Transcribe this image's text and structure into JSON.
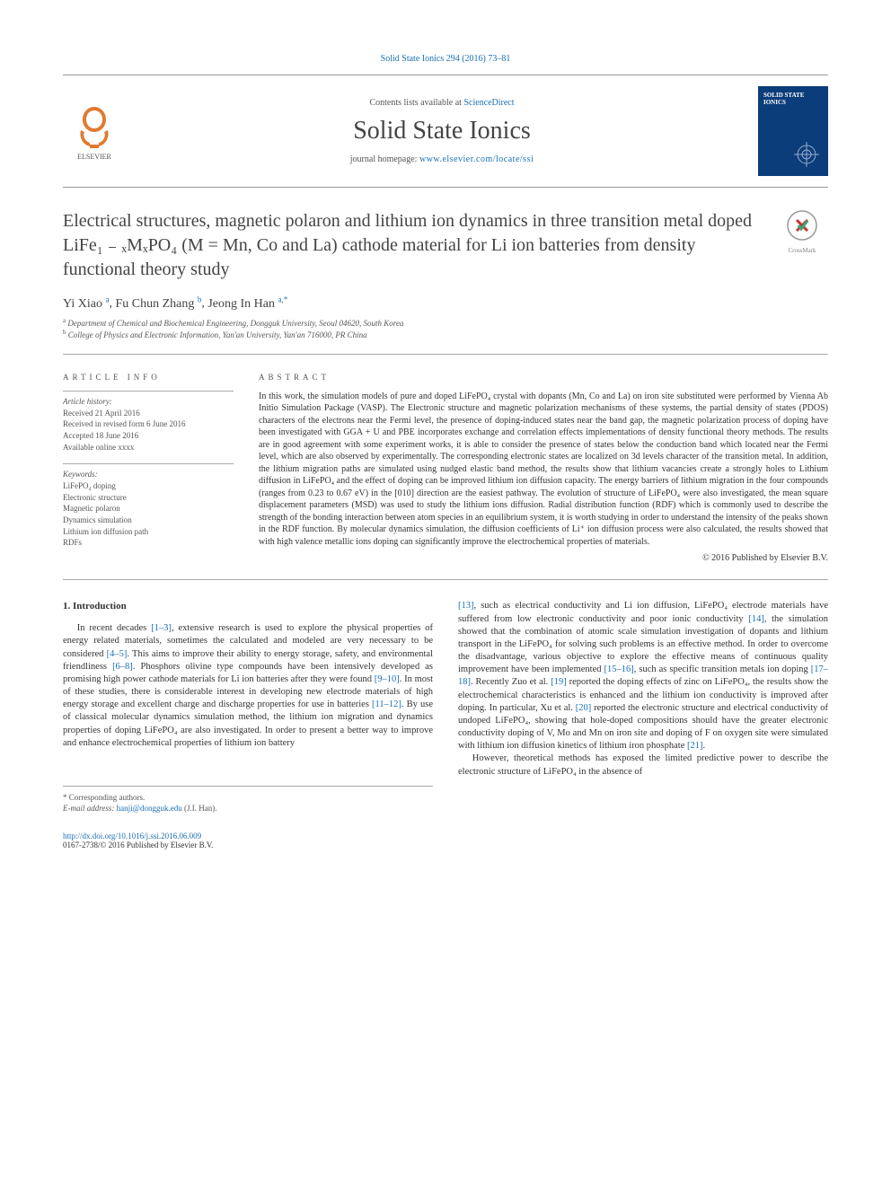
{
  "header": {
    "journal_ref": "Solid State Ionics 294 (2016) 73–81",
    "contents_prefix": "Contents lists available at ",
    "contents_link": "ScienceDirect",
    "journal_name": "Solid State Ionics",
    "homepage_prefix": "journal homepage: ",
    "homepage_url": "www.elsevier.com/locate/ssi",
    "cover_label": "SOLID STATE IONICS",
    "publisher_logo_label": "ELSEVIER"
  },
  "title": "Electrical structures, magnetic polaron and lithium ion dynamics in three transition metal doped LiFe₁ ₋ ₓMₓPO₄ (M = Mn, Co and La) cathode material for Li ion batteries from density functional theory study",
  "crossmark_label": "CrossMark",
  "authors_html": "Yi Xiao <sup>a</sup>, Fu Chun Zhang <sup>b</sup>, Jeong In Han <sup>a,*</sup>",
  "authors": [
    {
      "name": "Yi Xiao",
      "aff": "a"
    },
    {
      "name": "Fu Chun Zhang",
      "aff": "b"
    },
    {
      "name": "Jeong In Han",
      "aff": "a,*"
    }
  ],
  "affiliations": [
    {
      "sup": "a",
      "text": "Department of Chemical and Biochemical Engineering, Dongguk University, Seoul 04620, South Korea"
    },
    {
      "sup": "b",
      "text": "College of Physics and Electronic Information, Yan'an University, Yan'an 716000, PR China"
    }
  ],
  "article_info": {
    "heading": "ARTICLE INFO",
    "history_heading": "Article history:",
    "history": [
      "Received 21 April 2016",
      "Received in revised form 6 June 2016",
      "Accepted 18 June 2016",
      "Available online xxxx"
    ],
    "keywords_heading": "Keywords:",
    "keywords": [
      "LiFePO₄ doping",
      "Electronic structure",
      "Magnetic polaron",
      "Dynamics simulation",
      "Lithium ion diffusion path",
      "RDFs"
    ]
  },
  "abstract": {
    "heading": "ABSTRACT",
    "text": "In this work, the simulation models of pure and doped LiFePO₄ crystal with dopants (Mn, Co and La) on iron site substituted were performed by Vienna Ab Initio Simulation Package (VASP). The Electronic structure and magnetic polarization mechanisms of these systems, the partial density of states (PDOS) characters of the electrons near the Fermi level, the presence of doping-induced states near the band gap, the magnetic polarization process of doping have been investigated with GGA + U and PBE incorporates exchange and correlation effects implementations of density functional theory methods. The results are in good agreement with some experiment works, it is able to consider the presence of states below the conduction band which located near the Fermi level, which are also observed by experimentally. The corresponding electronic states are localized on 3d levels character of the transition metal. In addition, the lithium migration paths are simulated using nudged elastic band method, the results show that lithium vacancies create a strongly holes to Lithium diffusion in LiFePO₄ and the effect of doping can be improved lithium ion diffusion capacity. The energy barriers of lithium migration in the four compounds (ranges from 0.23 to 0.67 eV) in the [010] direction are the easiest pathway. The evolution of structure of LiFePO₄ were also investigated, the mean square displacement parameters (MSD) was used to study the lithium ions diffusion. Radial distribution function (RDF) which is commonly used to describe the strength of the bonding interaction between atom species in an equilibrium system, it is worth studying in order to understand the intensity of the peaks shown in the RDF function. By molecular dynamics simulation, the diffusion coefficients of Li⁺ ion diffusion process were also calculated, the results showed that with high valence metallic ions doping can significantly improve the electrochemical properties of materials.",
    "copyright": "© 2016 Published by Elsevier B.V."
  },
  "body": {
    "section_heading": "1. Introduction",
    "left_col": "In recent decades [1–3], extensive research is used to explore the physical properties of energy related materials, sometimes the calculated and modeled are very necessary to be considered [4–5]. This aims to improve their ability to energy storage, safety, and environmental friendliness [6–8]. Phosphors olivine type compounds have been intensively developed as promising high power cathode materials for Li ion batteries after they were found [9–10]. In most of these studies, there is considerable interest in developing new electrode materials of high energy storage and excellent charge and discharge properties for use in batteries [11–12]. By use of classical molecular dynamics simulation method, the lithium ion migration and dynamics properties of doping LiFePO₄ are also investigated. In order to present a better way to improve and enhance electrochemical properties of lithium ion battery",
    "right_col_p1": "[13], such as electrical conductivity and Li ion diffusion, LiFePO₄ electrode materials have suffered from low electronic conductivity and poor ionic conductivity [14], the simulation showed that the combination of atomic scale simulation investigation of dopants and lithium transport in the LiFePO₄ for solving such problems is an effective method. In order to overcome the disadvantage, various objective to explore the effective means of continuous quality improvement have been implemented [15–16], such as specific transition metals ion doping [17–18]. Recently Zuo et al. [19] reported the doping effects of zinc on LiFePO₄, the results show the electrochemical characteristics is enhanced and the lithium ion conductivity is improved after doping. In particular, Xu et al. [20] reported the electronic structure and electrical conductivity of undoped LiFePO₄, showing that hole-doped compositions should have the greater electronic conductivity doping of V, Mo and Mn on iron site and doping of F on oxygen site were simulated with lithium ion diffusion kinetics of lithium iron phosphate [21].",
    "right_col_p2": "However, theoretical methods has exposed the limited predictive power to describe the electronic structure of LiFePO₄ in the absence of",
    "refs_left": [
      "[1–3]",
      "[4–5]",
      "[6–8]",
      "[9–10]",
      "[11–12]"
    ],
    "refs_right": [
      "[13]",
      "[14]",
      "[15–16]",
      "[17–18]",
      "[19]",
      "[20]",
      "[21]"
    ]
  },
  "footer": {
    "corresponding_label": "* Corresponding authors.",
    "email_label": "E-mail address: ",
    "email": "hanji@dongguk.edu",
    "email_suffix": " (J.I. Han).",
    "doi": "http://dx.doi.org/10.1016/j.ssi.2016.06.009",
    "issn_line": "0167-2738/© 2016 Published by Elsevier B.V."
  },
  "colors": {
    "link": "#1a6fb5",
    "text": "#333333",
    "muted": "#555555",
    "rule": "#aaaaaa",
    "cover_bg": "#0a3d7a"
  },
  "typography": {
    "title_fontsize": 20,
    "journal_name_fontsize": 28,
    "body_fontsize": 10.5,
    "abstract_fontsize": 10,
    "info_fontsize": 9
  }
}
